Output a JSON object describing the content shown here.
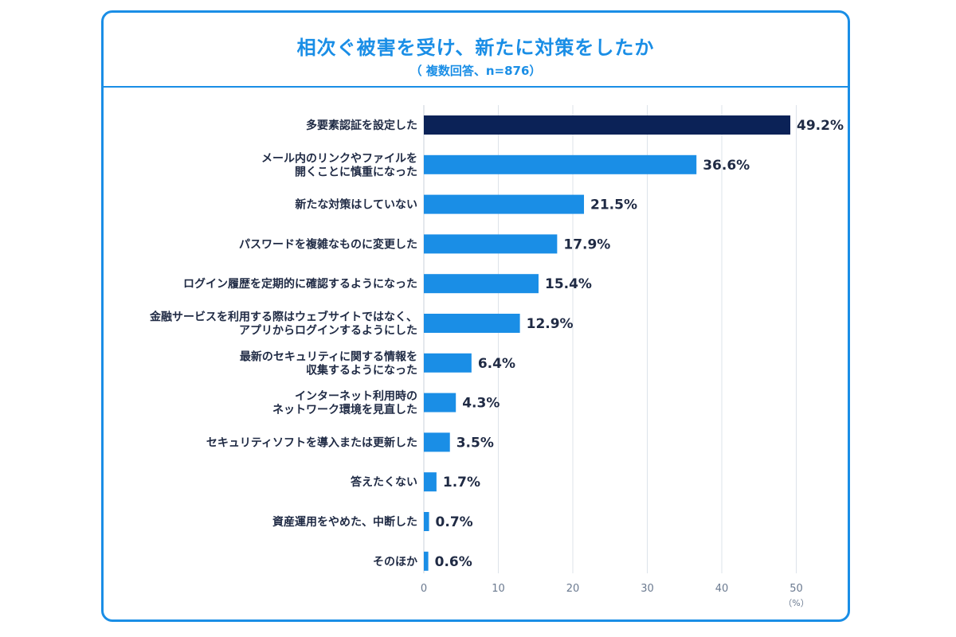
{
  "header": {
    "title": "相次ぐ被害を受け、新たに対策をしたか",
    "subtitle": "（ 複数回答、n=876）"
  },
  "chart_data": {
    "type": "bar",
    "orientation": "horizontal",
    "categories": [
      [
        "多要素認証を設定した"
      ],
      [
        "メール内のリンクやファイルを",
        "開くことに慎重になった"
      ],
      [
        "新たな対策はしていない"
      ],
      [
        "パスワードを複雑なものに変更した"
      ],
      [
        "ログイン履歴を定期的に確認するようになった"
      ],
      [
        "金融サービスを利用する際はウェブサイトではなく、",
        "アプリからログインするようにした"
      ],
      [
        "最新のセキュリティに関する情報を",
        "収集するようになった"
      ],
      [
        "インターネット利用時の",
        "ネットワーク環境を見直した"
      ],
      [
        "セキュリティソフトを導入または更新した"
      ],
      [
        "答えたくない"
      ],
      [
        "資産運用をやめた、中断した"
      ],
      [
        "そのほか"
      ]
    ],
    "values": [
      49.2,
      36.6,
      21.5,
      17.9,
      15.4,
      12.9,
      6.4,
      4.3,
      3.5,
      1.7,
      0.7,
      0.6
    ],
    "value_labels": [
      "49.2%",
      "36.6%",
      "21.5%",
      "17.9%",
      "15.4%",
      "12.9%",
      "6.4%",
      "4.3%",
      "3.5%",
      "1.7%",
      "0.7%",
      "0.6%"
    ],
    "xlim": [
      0,
      50
    ],
    "xticks": [
      "0",
      "10",
      "20",
      "30",
      "40",
      "50"
    ],
    "x_unit": "（%）",
    "grid": true,
    "highlight_color": "#0b2257",
    "bar_color": "#1a8ee6"
  }
}
